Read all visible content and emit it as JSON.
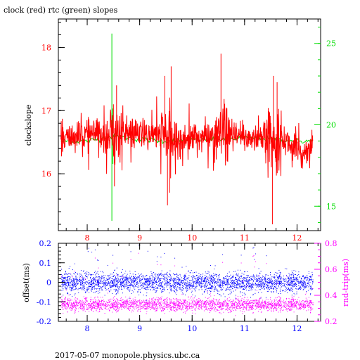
{
  "title": "clock (red) rtc (green) slopes",
  "footer": "2017-05-07  monopole.physics.ubc.ca",
  "colors": {
    "clock": "#ff0000",
    "rtc": "#00dd00",
    "offset": "#0000ff",
    "rndtrip": "#ff00ff",
    "axis": "#000000"
  },
  "chart_data": [
    {
      "type": "line",
      "ylabel": "clockslope",
      "y2label": "",
      "xlim": [
        7.45,
        12.45
      ],
      "ylim": [
        15.1,
        18.45
      ],
      "y2lim": [
        13.5,
        26.5
      ],
      "xticks": [
        "8",
        "9",
        "10",
        "11",
        "12"
      ],
      "yticks": [
        "16",
        "17",
        "18"
      ],
      "y2ticks": [
        "15",
        "20",
        "25"
      ],
      "series": [
        {
          "name": "clock",
          "color": "red",
          "baseline": [
            [
              7.5,
              16.55
            ],
            [
              8.0,
              16.62
            ],
            [
              8.5,
              16.64
            ],
            [
              9.0,
              16.62
            ],
            [
              9.5,
              16.62
            ],
            [
              9.6,
              16.5
            ],
            [
              10.0,
              16.58
            ],
            [
              10.5,
              16.6
            ],
            [
              11.0,
              16.57
            ],
            [
              11.5,
              16.58
            ],
            [
              11.8,
              16.52
            ],
            [
              12.0,
              16.35
            ],
            [
              12.1,
              16.3
            ],
            [
              12.3,
              16.5
            ]
          ],
          "spikes": [
            [
              8.5,
              17.1
            ],
            [
              8.52,
              15.8
            ],
            [
              8.56,
              17.4
            ],
            [
              9.48,
              17.55
            ],
            [
              9.53,
              15.5
            ],
            [
              9.6,
              17.7
            ],
            [
              9.57,
              15.7
            ],
            [
              10.5,
              16.5
            ],
            [
              10.55,
              17.9
            ],
            [
              11.48,
              16.5
            ],
            [
              11.53,
              15.2
            ],
            [
              11.55,
              17.55
            ],
            [
              11.62,
              17.45
            ]
          ]
        },
        {
          "name": "rtc",
          "color": "green",
          "baseline": [
            [
              7.5,
              19.0
            ],
            [
              8.0,
              19.0
            ],
            [
              8.5,
              19.3
            ],
            [
              9.0,
              19.1
            ],
            [
              9.5,
              19.0
            ],
            [
              10.0,
              19.1
            ],
            [
              10.5,
              19.1
            ],
            [
              11.0,
              19.2
            ],
            [
              11.5,
              19.1
            ],
            [
              12.0,
              19.0
            ],
            [
              12.3,
              19.0
            ]
          ],
          "spikes": [
            [
              8.47,
              25.6
            ],
            [
              8.47,
              14.1
            ],
            [
              8.49,
              21.0
            ],
            [
              8.49,
              17.6
            ]
          ]
        }
      ]
    },
    {
      "type": "scatter",
      "xlabel": "",
      "ylabel": "offset(ms)",
      "y2label": "rnd-trip(ms)",
      "xlim": [
        7.45,
        12.45
      ],
      "ylim": [
        -0.2,
        0.2
      ],
      "y2lim": [
        0.2,
        0.8
      ],
      "xticks": [
        "8",
        "9",
        "10",
        "11",
        "12"
      ],
      "yticks": [
        "-0.2",
        "-0.1",
        "0",
        "0.1",
        "0.2"
      ],
      "y2ticks": [
        "0.2",
        "0.4",
        "0.6",
        "0.8"
      ],
      "series": [
        {
          "name": "offset",
          "color": "blue",
          "y_center": 0.0,
          "y_spread": 0.045,
          "x_range": [
            7.5,
            12.3
          ]
        },
        {
          "name": "rnd-trip",
          "color": "magenta",
          "y_center": 0.33,
          "y_spread": 0.05,
          "x_range": [
            7.5,
            12.3
          ]
        }
      ]
    }
  ]
}
